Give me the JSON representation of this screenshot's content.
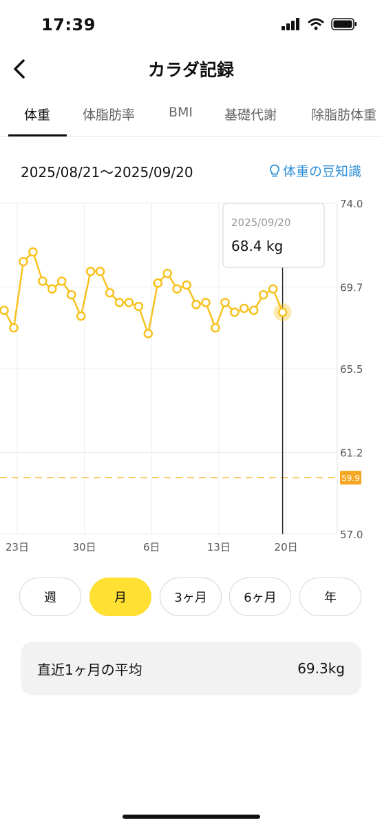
{
  "status_bar": {
    "time": "17:39"
  },
  "header": {
    "title": "カラダ記録"
  },
  "tabs": [
    {
      "label": "体重",
      "active": true
    },
    {
      "label": "体脂肪率",
      "active": false
    },
    {
      "label": "BMI",
      "active": false
    },
    {
      "label": "基礎代謝",
      "active": false
    },
    {
      "label": "除脂肪体重",
      "active": false
    }
  ],
  "date_range": "2025/08/21〜2025/09/20",
  "tips_link": "体重の豆知識",
  "tooltip": {
    "date": "2025/09/20",
    "value": "68.4 kg"
  },
  "chart_data": {
    "type": "line",
    "title": "",
    "xlabel": "",
    "ylabel": "",
    "ylim": [
      57.0,
      74.0
    ],
    "y_ticks": [
      "74.0",
      "69.7",
      "65.5",
      "61.2",
      "57.0"
    ],
    "x_tick_labels": [
      {
        "day": 23,
        "label": "23日"
      },
      {
        "day": 30,
        "label": "30日"
      },
      {
        "day": 37,
        "label": "6日"
      },
      {
        "day": 44,
        "label": "13日"
      },
      {
        "day": 51,
        "label": "20日"
      }
    ],
    "target": {
      "value": 59.9,
      "label": "59.9"
    },
    "series": [
      {
        "x": [
          22,
          23,
          24,
          25,
          26,
          27,
          28,
          29,
          30,
          31,
          32,
          33,
          34,
          35,
          36,
          37,
          38,
          39,
          40,
          41,
          42,
          43,
          44,
          45,
          46,
          47,
          48,
          49,
          50,
          51
        ],
        "values": [
          68.5,
          67.6,
          71.0,
          71.5,
          70.0,
          69.6,
          70.0,
          69.3,
          68.2,
          70.5,
          70.5,
          69.4,
          68.9,
          68.9,
          68.7,
          67.3,
          69.9,
          70.4,
          69.6,
          69.8,
          68.8,
          68.9,
          67.6,
          68.9,
          68.4,
          68.6,
          68.5,
          69.3,
          69.6,
          68.4
        ]
      }
    ],
    "grid": true,
    "selected_day": 51
  },
  "colors": {
    "line": "#f6c21e",
    "accent": "#ffe033",
    "target": "#f5b731",
    "link": "#2f8fd8"
  },
  "period_buttons": [
    {
      "label": "週",
      "active": false
    },
    {
      "label": "月",
      "active": true
    },
    {
      "label": "3ヶ月",
      "active": false
    },
    {
      "label": "6ヶ月",
      "active": false
    },
    {
      "label": "年",
      "active": false
    }
  ],
  "average": {
    "label": "直近1ヶ月の平均",
    "value": "69.3kg"
  }
}
